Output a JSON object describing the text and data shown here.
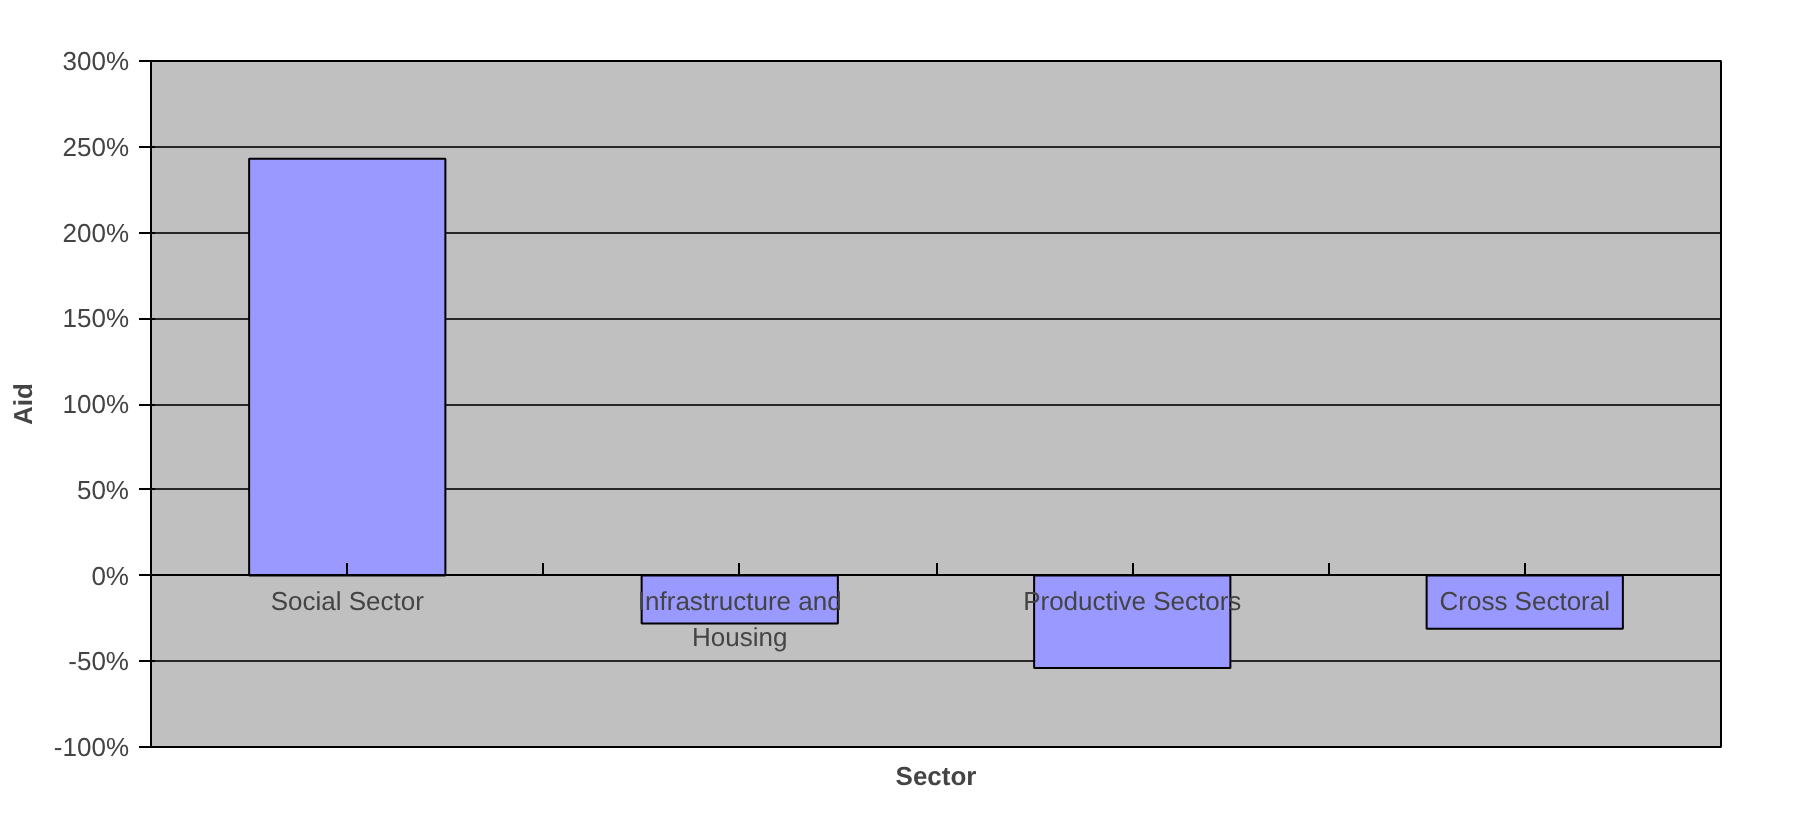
{
  "chart_data": {
    "type": "bar",
    "xlabel": "Sector",
    "ylabel": "Aid",
    "categories": [
      "Social Sector",
      "Infrastructure and Housing",
      "Productive Sectors",
      "Cross Sectoral"
    ],
    "values": [
      243,
      -28,
      -54,
      -31
    ],
    "color": "#9999ff",
    "ylim": [
      -100,
      300
    ],
    "yticks": [
      {
        "value": -100,
        "label": "-100%"
      },
      {
        "value": -50,
        "label": "-50%"
      },
      {
        "value": 0,
        "label": "0%"
      },
      {
        "value": 50,
        "label": "50%"
      },
      {
        "value": 100,
        "label": "100%"
      },
      {
        "value": 150,
        "label": "150%"
      },
      {
        "value": 200,
        "label": "200%"
      },
      {
        "value": 250,
        "label": "250%"
      },
      {
        "value": 300,
        "label": "300%"
      }
    ],
    "grid": "y"
  }
}
